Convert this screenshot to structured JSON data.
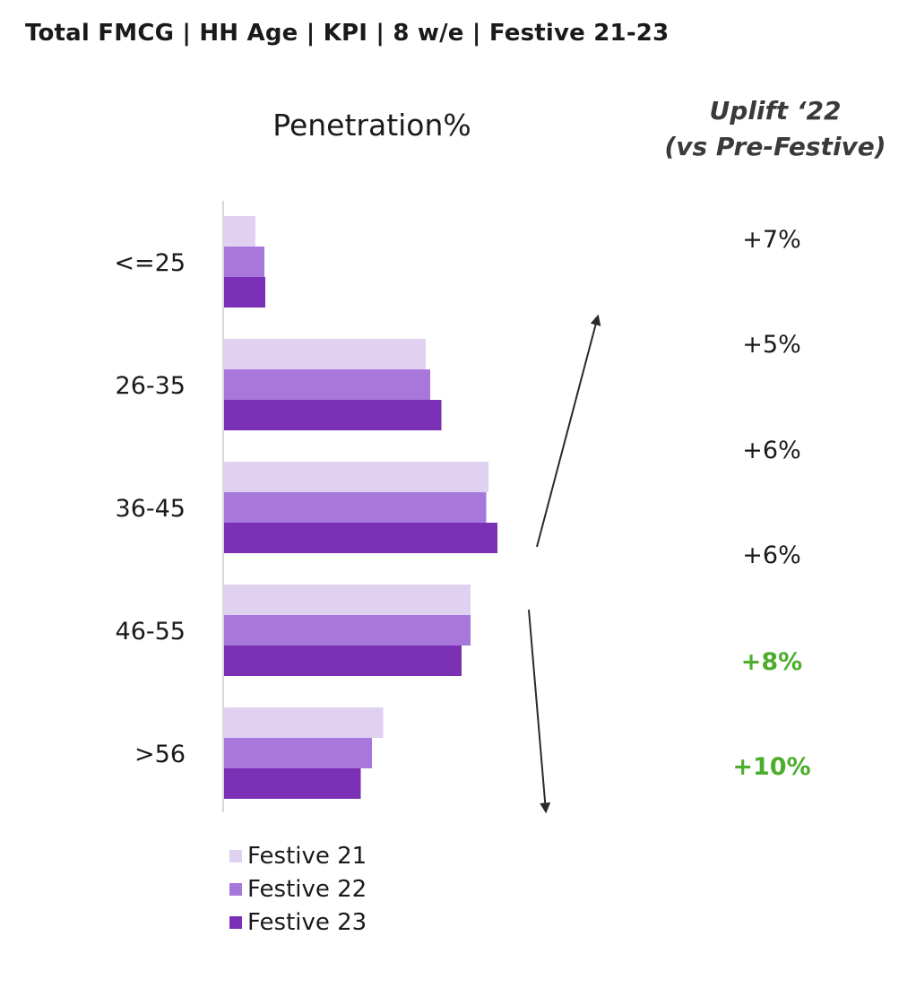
{
  "header": {
    "title": "Total FMCG | HH Age | KPI | 8 w/e | Festive 21-23"
  },
  "uplift": {
    "header_line1": "Uplift ‘22",
    "header_line2": "(vs Pre-Festive)",
    "values": [
      {
        "label": "+7%",
        "highlight": false
      },
      {
        "label": "+5%",
        "highlight": false
      },
      {
        "label": "+6%",
        "highlight": false
      },
      {
        "label": "+6%",
        "highlight": false
      },
      {
        "label": "+8%",
        "highlight": true
      },
      {
        "label": "+10%",
        "highlight": true
      }
    ],
    "highlight_color": "#4cae2c"
  },
  "chart_data": {
    "type": "bar",
    "orientation": "horizontal",
    "title": "Penetration%",
    "categories": [
      "<=25",
      "26-35",
      "36-45",
      "46-55",
      ">56"
    ],
    "series": [
      {
        "name": "Festive 21",
        "color": "#e0d1f1",
        "values": [
          7,
          45,
          59,
          55,
          35.5
        ]
      },
      {
        "name": "Festive 22",
        "color": "#a877db",
        "values": [
          9,
          46,
          58.5,
          55,
          33
        ]
      },
      {
        "name": "Festive 23",
        "color": "#7a31b5",
        "values": [
          9.2,
          48.5,
          61,
          53,
          30.5
        ]
      }
    ],
    "xlim": [
      0,
      100
    ],
    "grid": false,
    "legend_position": "bottom-left",
    "annotations": [
      {
        "type": "arrow",
        "direction": "up"
      },
      {
        "type": "arrow",
        "direction": "down"
      }
    ]
  }
}
